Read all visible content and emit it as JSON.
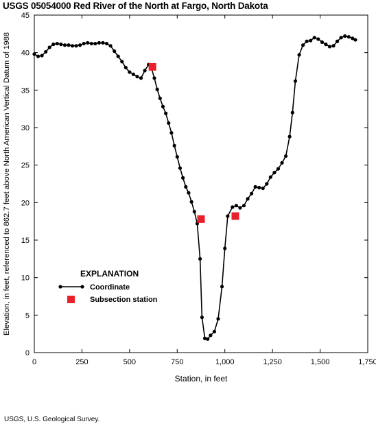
{
  "chart_data": {
    "type": "line",
    "title": "USGS 05054000 Red River of the North at Fargo, North Dakota",
    "xlabel": "Station, in feet",
    "ylabel": "Elevation, in feet, referenced to 862.7 feet above North American Vertical Datum of 1988",
    "xlim": [
      0,
      1750
    ],
    "ylim": [
      0,
      45
    ],
    "x_ticks": [
      0,
      250,
      500,
      750,
      1000,
      1250,
      1500,
      1750
    ],
    "x_tick_labels": [
      "0",
      "250",
      "500",
      "750",
      "1,000",
      "1,250",
      "1,500",
      "1,750"
    ],
    "y_ticks": [
      0,
      5,
      10,
      15,
      20,
      25,
      30,
      35,
      40,
      45
    ],
    "y_tick_labels": [
      "0",
      "5",
      "10",
      "15",
      "20",
      "25",
      "30",
      "35",
      "40",
      "45"
    ],
    "grid": false,
    "legend": {
      "title": "EXPLANATION",
      "placement": "lower-left",
      "entries": [
        "Coordinate",
        "Subsection station"
      ]
    },
    "series": [
      {
        "name": "Coordinate",
        "color": "#000000",
        "marker": "circle",
        "x": [
          0,
          20,
          40,
          60,
          80,
          100,
          120,
          140,
          160,
          180,
          200,
          220,
          240,
          260,
          280,
          300,
          320,
          340,
          360,
          380,
          400,
          420,
          440,
          460,
          480,
          500,
          520,
          540,
          560,
          580,
          600,
          615,
          630,
          645,
          660,
          675,
          690,
          705,
          720,
          735,
          750,
          765,
          780,
          795,
          810,
          825,
          840,
          855,
          870,
          880,
          895,
          910,
          925,
          945,
          965,
          985,
          1000,
          1015,
          1040,
          1060,
          1080,
          1100,
          1120,
          1140,
          1160,
          1180,
          1200,
          1220,
          1240,
          1260,
          1280,
          1300,
          1320,
          1340,
          1355,
          1370,
          1390,
          1410,
          1430,
          1450,
          1470,
          1490,
          1510,
          1530,
          1550,
          1570,
          1590,
          1610,
          1630,
          1650,
          1670,
          1685
        ],
        "y": [
          39.8,
          39.5,
          39.6,
          40.1,
          40.7,
          41.1,
          41.2,
          41.1,
          41.0,
          41.0,
          40.9,
          40.9,
          41.0,
          41.2,
          41.3,
          41.2,
          41.2,
          41.3,
          41.3,
          41.2,
          40.9,
          40.2,
          39.5,
          38.8,
          38.0,
          37.4,
          37.1,
          36.8,
          36.6,
          37.6,
          38.4,
          37.9,
          36.6,
          35.1,
          33.9,
          32.8,
          31.9,
          30.6,
          29.3,
          27.6,
          26.1,
          24.6,
          23.3,
          22.1,
          21.3,
          20.1,
          18.8,
          17.2,
          12.5,
          4.7,
          1.9,
          1.8,
          2.3,
          2.8,
          4.5,
          8.8,
          13.9,
          18.2,
          19.4,
          19.6,
          19.3,
          19.6,
          20.5,
          21.2,
          22.1,
          22.0,
          21.9,
          22.5,
          23.4,
          24.0,
          24.5,
          25.3,
          26.2,
          28.8,
          32.0,
          36.2,
          39.7,
          41.0,
          41.5,
          41.6,
          42.0,
          41.8,
          41.4,
          41.1,
          40.8,
          40.9,
          41.5,
          42.0,
          42.2,
          42.1,
          41.9,
          41.7
        ]
      },
      {
        "name": "Subsection station",
        "color": "#e8202a",
        "marker": "square",
        "x": [
          620,
          875,
          1055
        ],
        "y": [
          38.1,
          17.8,
          18.2
        ]
      }
    ]
  },
  "credit": "USGS, U.S. Geological Survey."
}
